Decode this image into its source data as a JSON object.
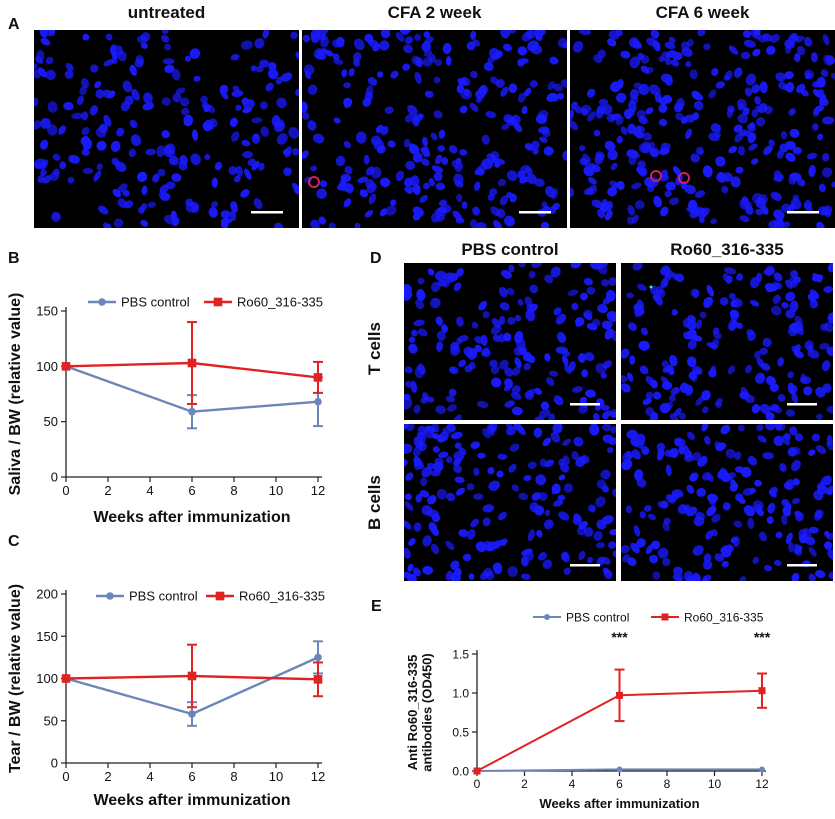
{
  "panels": {
    "A": {
      "label": "A",
      "titles": [
        "untreated",
        "CFA 2 week",
        "CFA 6 week"
      ]
    },
    "B": {
      "label": "B"
    },
    "C": {
      "label": "C"
    },
    "D": {
      "label": "D",
      "col_titles": [
        "PBS control",
        "Ro60_316-335"
      ],
      "row_titles": [
        "T cells",
        "B cells"
      ]
    },
    "E": {
      "label": "E"
    }
  },
  "colors": {
    "pbs": "#6b86b8",
    "ro60": "#e02222",
    "nucleus": "#1a1aff",
    "scalebar": "#ffffff"
  },
  "chart_data": [
    {
      "panel": "B",
      "type": "line",
      "xlabel": "Weeks after immunization",
      "ylabel": "Saliva / BW (relative value)",
      "xlim": [
        0,
        12
      ],
      "ylim": [
        0,
        150
      ],
      "xticks": [
        0,
        2,
        4,
        6,
        8,
        10,
        12
      ],
      "yticks": [
        0,
        50,
        100,
        150
      ],
      "legend_position": "top",
      "series": [
        {
          "name": "PBS control",
          "color": "#6b86b8",
          "marker": "circle",
          "x": [
            0,
            6,
            12
          ],
          "y": [
            100,
            59,
            68
          ],
          "err": [
            0,
            15,
            22
          ]
        },
        {
          "name": "Ro60_316-335",
          "color": "#e02222",
          "marker": "square",
          "x": [
            0,
            6,
            12
          ],
          "y": [
            100,
            103,
            90
          ],
          "err": [
            0,
            37,
            14
          ]
        }
      ]
    },
    {
      "panel": "C",
      "type": "line",
      "xlabel": "Weeks after immunization",
      "ylabel": "Tear / BW (relative value)",
      "xlim": [
        0,
        12
      ],
      "ylim": [
        0,
        200
      ],
      "xticks": [
        0,
        2,
        4,
        6,
        8,
        10,
        12
      ],
      "yticks": [
        0,
        50,
        100,
        150,
        200
      ],
      "legend_position": "top",
      "series": [
        {
          "name": "PBS control",
          "color": "#6b86b8",
          "marker": "circle",
          "x": [
            0,
            6,
            12
          ],
          "y": [
            100,
            58,
            125
          ],
          "err": [
            0,
            14,
            19
          ]
        },
        {
          "name": "Ro60_316-335",
          "color": "#e02222",
          "marker": "square",
          "x": [
            0,
            6,
            12
          ],
          "y": [
            100,
            103,
            99
          ],
          "err": [
            0,
            37,
            20
          ]
        }
      ]
    },
    {
      "panel": "E",
      "type": "line",
      "xlabel": "Weeks after immunization",
      "ylabel": "Anti Ro60_316-335 antibodies (OD450)",
      "xlim": [
        0,
        12
      ],
      "ylim": [
        0,
        1.5
      ],
      "xticks": [
        0,
        2,
        4,
        6,
        8,
        10,
        12
      ],
      "yticks": [
        0.0,
        0.5,
        1.0,
        1.5
      ],
      "ytick_labels": [
        "0.0",
        "0.5",
        "1.0",
        "1.5"
      ],
      "legend_position": "top",
      "annotations": [
        {
          "x": 6,
          "text": "***"
        },
        {
          "x": 12,
          "text": "***"
        }
      ],
      "series": [
        {
          "name": "PBS control",
          "color": "#6b86b8",
          "marker": "circle",
          "x": [
            0,
            6,
            12
          ],
          "y": [
            0.0,
            0.02,
            0.02
          ],
          "err": [
            0,
            0,
            0
          ]
        },
        {
          "name": "Ro60_316-335",
          "color": "#e02222",
          "marker": "square",
          "x": [
            0,
            6,
            12
          ],
          "y": [
            0.0,
            0.97,
            1.03
          ],
          "err": [
            0,
            0.33,
            0.22
          ]
        }
      ]
    }
  ]
}
